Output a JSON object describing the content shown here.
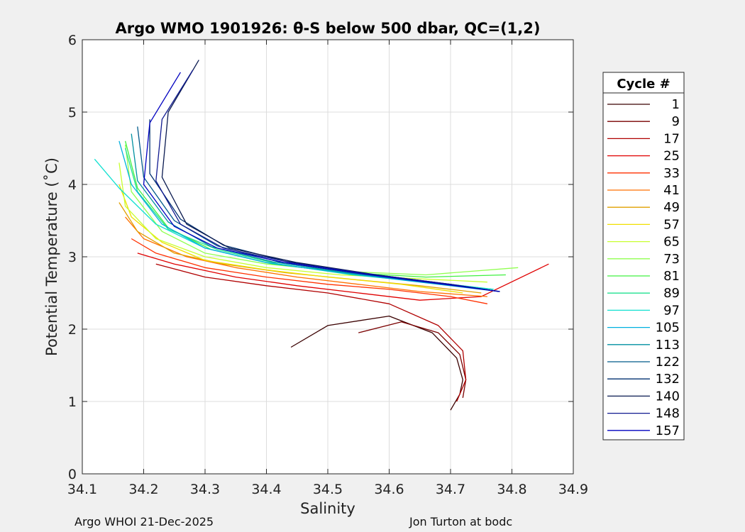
{
  "chart_data": {
    "type": "line",
    "title": "Argo WMO 1901926: θ-S below 500 dbar,  QC=(1,2)",
    "xlabel": "Salinity",
    "ylabel": "Potential Temperature (˚C)",
    "xlim": [
      34.1,
      34.9
    ],
    "ylim": [
      0,
      6
    ],
    "xticks": [
      34.1,
      34.2,
      34.3,
      34.4,
      34.5,
      34.6,
      34.7,
      34.8,
      34.9
    ],
    "yticks": [
      0,
      1,
      2,
      3,
      4,
      5,
      6
    ],
    "grid": true,
    "legend_title": "Cycle #",
    "legend_position": "right-outside",
    "legend": [
      {
        "name": "1",
        "color": "#3a0000"
      },
      {
        "name": "9",
        "color": "#7a0000"
      },
      {
        "name": "17",
        "color": "#b00000"
      },
      {
        "name": "25",
        "color": "#e00000"
      },
      {
        "name": "33",
        "color": "#ff3000"
      },
      {
        "name": "41",
        "color": "#ff7000"
      },
      {
        "name": "49",
        "color": "#e0a000"
      },
      {
        "name": "57",
        "color": "#f0e000"
      },
      {
        "name": "65",
        "color": "#c8ff30"
      },
      {
        "name": "73",
        "color": "#90ff50"
      },
      {
        "name": "81",
        "color": "#40f040"
      },
      {
        "name": "89",
        "color": "#20e090"
      },
      {
        "name": "97",
        "color": "#10e0d0"
      },
      {
        "name": "105",
        "color": "#00b0e0"
      },
      {
        "name": "113",
        "color": "#0090a0"
      },
      {
        "name": "122",
        "color": "#005a8a"
      },
      {
        "name": "132",
        "color": "#003070"
      },
      {
        "name": "140",
        "color": "#0a1a50"
      },
      {
        "name": "148",
        "color": "#101a90"
      },
      {
        "name": "157",
        "color": "#0000c0"
      }
    ],
    "series": [
      {
        "name": "1",
        "color": "#3a0000",
        "x": [
          34.44,
          34.5,
          34.6,
          34.67,
          34.71,
          34.72,
          34.715,
          34.7
        ],
        "y": [
          1.75,
          2.05,
          2.18,
          1.95,
          1.6,
          1.3,
          1.1,
          0.88
        ]
      },
      {
        "name": "9",
        "color": "#7a0000",
        "x": [
          34.55,
          34.62,
          34.68,
          34.715,
          34.725,
          34.72
        ],
        "y": [
          1.95,
          2.1,
          1.95,
          1.65,
          1.3,
          1.05
        ]
      },
      {
        "name": "17",
        "color": "#b00000",
        "x": [
          34.22,
          34.3,
          34.4,
          34.5,
          34.6,
          34.68,
          34.72,
          34.725,
          34.71
        ],
        "y": [
          2.9,
          2.72,
          2.6,
          2.5,
          2.35,
          2.05,
          1.7,
          1.3,
          1.0
        ]
      },
      {
        "name": "25",
        "color": "#e00000",
        "x": [
          34.19,
          34.25,
          34.35,
          34.45,
          34.55,
          34.65,
          34.75,
          34.86
        ],
        "y": [
          3.05,
          2.9,
          2.72,
          2.6,
          2.5,
          2.4,
          2.45,
          2.9
        ]
      },
      {
        "name": "33",
        "color": "#ff3000",
        "x": [
          34.18,
          34.22,
          34.3,
          34.4,
          34.5,
          34.6,
          34.7,
          34.76
        ],
        "y": [
          3.25,
          3.05,
          2.85,
          2.72,
          2.62,
          2.55,
          2.45,
          2.35
        ]
      },
      {
        "name": "41",
        "color": "#ff7000",
        "x": [
          34.17,
          34.2,
          34.27,
          34.35,
          34.45,
          34.55,
          34.65,
          34.76
        ],
        "y": [
          3.55,
          3.25,
          3.0,
          2.85,
          2.72,
          2.62,
          2.52,
          2.45
        ]
      },
      {
        "name": "49",
        "color": "#e0a000",
        "x": [
          34.16,
          34.19,
          34.25,
          34.33,
          34.43,
          34.55,
          34.65,
          34.75
        ],
        "y": [
          3.75,
          3.35,
          3.05,
          2.9,
          2.78,
          2.68,
          2.6,
          2.5
        ]
      },
      {
        "name": "57",
        "color": "#f0e000",
        "x": [
          34.16,
          34.18,
          34.23,
          34.3,
          34.4,
          34.5,
          34.62,
          34.72
        ],
        "y": [
          4.0,
          3.55,
          3.2,
          2.95,
          2.82,
          2.72,
          2.62,
          2.5
        ]
      },
      {
        "name": "65",
        "color": "#c8ff30",
        "x": [
          34.16,
          34.17,
          34.22,
          34.3,
          34.4,
          34.52,
          34.64,
          34.76
        ],
        "y": [
          4.3,
          3.7,
          3.25,
          3.0,
          2.85,
          2.75,
          2.7,
          2.65
        ]
      },
      {
        "name": "73",
        "color": "#90ff50",
        "x": [
          34.17,
          34.18,
          34.23,
          34.3,
          34.4,
          34.52,
          34.66,
          34.81
        ],
        "y": [
          4.55,
          3.9,
          3.35,
          3.05,
          2.9,
          2.8,
          2.75,
          2.85
        ]
      },
      {
        "name": "81",
        "color": "#40f040",
        "x": [
          34.17,
          34.19,
          34.24,
          34.31,
          34.41,
          34.53,
          34.66,
          34.79
        ],
        "y": [
          4.6,
          3.95,
          3.4,
          3.1,
          2.9,
          2.78,
          2.72,
          2.75
        ]
      },
      {
        "name": "89",
        "color": "#20e090",
        "x": [
          34.17,
          34.19,
          34.24,
          34.32,
          34.42,
          34.54,
          34.66,
          34.77
        ],
        "y": [
          4.5,
          3.9,
          3.38,
          3.1,
          2.9,
          2.75,
          2.65,
          2.55
        ]
      },
      {
        "name": "97",
        "color": "#10e0d0",
        "x": [
          34.12,
          34.16,
          34.22,
          34.3,
          34.4,
          34.52,
          34.64,
          34.77
        ],
        "y": [
          4.35,
          3.95,
          3.45,
          3.12,
          2.92,
          2.78,
          2.68,
          2.55
        ]
      },
      {
        "name": "105",
        "color": "#00b0e0",
        "x": [
          34.16,
          34.18,
          34.23,
          34.3,
          34.4,
          34.52,
          34.64,
          34.78
        ],
        "y": [
          4.6,
          4.0,
          3.45,
          3.12,
          2.92,
          2.78,
          2.66,
          2.52
        ]
      },
      {
        "name": "113",
        "color": "#0090a0",
        "x": [
          34.18,
          34.19,
          34.24,
          34.31,
          34.41,
          34.53,
          34.65,
          34.78
        ],
        "y": [
          4.7,
          4.05,
          3.48,
          3.14,
          2.93,
          2.78,
          2.66,
          2.52
        ]
      },
      {
        "name": "122",
        "color": "#005a8a",
        "x": [
          34.19,
          34.2,
          34.25,
          34.32,
          34.42,
          34.54,
          34.66,
          34.78
        ],
        "y": [
          4.8,
          4.1,
          3.5,
          3.15,
          2.93,
          2.78,
          2.66,
          2.52
        ]
      },
      {
        "name": "132",
        "color": "#003070",
        "x": [
          34.21,
          34.21,
          34.26,
          34.33,
          34.43,
          34.55,
          34.67,
          34.78
        ],
        "y": [
          4.9,
          4.15,
          3.52,
          3.16,
          2.94,
          2.78,
          2.65,
          2.52
        ]
      },
      {
        "name": "140",
        "color": "#0a1a50",
        "x": [
          34.29,
          34.24,
          34.23,
          34.27,
          34.34,
          34.45,
          34.58,
          34.7,
          34.78
        ],
        "y": [
          5.72,
          5.0,
          4.1,
          3.45,
          3.12,
          2.92,
          2.75,
          2.62,
          2.52
        ]
      },
      {
        "name": "148",
        "color": "#101a90",
        "x": [
          34.28,
          34.23,
          34.22,
          34.26,
          34.33,
          34.44,
          34.57,
          34.7,
          34.78
        ],
        "y": [
          5.58,
          4.9,
          4.05,
          3.45,
          3.12,
          2.92,
          2.76,
          2.62,
          2.52
        ]
      },
      {
        "name": "157",
        "color": "#0000c0",
        "x": [
          34.26,
          34.21,
          34.2,
          34.25,
          34.32,
          34.43,
          34.56,
          34.69,
          34.78
        ],
        "y": [
          5.55,
          4.85,
          4.0,
          3.42,
          3.12,
          2.92,
          2.76,
          2.62,
          2.52
        ]
      }
    ]
  },
  "footer": {
    "left": "Argo WHOI 21-Dec-2025",
    "right": "Jon Turton at bodc"
  }
}
